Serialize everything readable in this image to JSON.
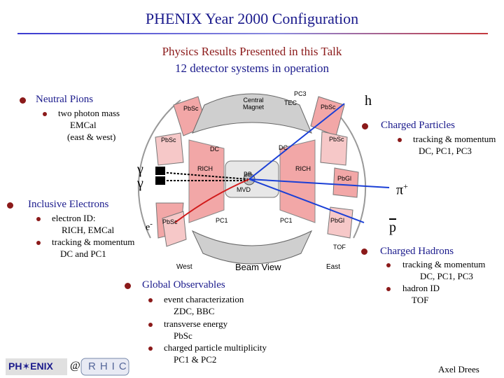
{
  "title": "PHENIX Year 2000 Configuration",
  "subtitle": "Physics Results Presented in this Talk",
  "subtitle2": "12  detector systems in operation",
  "neutral_pions": {
    "heading": "Neutral Pions",
    "line1": "two photon mass",
    "line2": "EMCal",
    "line3": "(east & west)"
  },
  "charged_particles": {
    "heading": "Charged Particles",
    "line1": "tracking & momentum",
    "line2": "DC, PC1, PC3"
  },
  "inclusive_electrons": {
    "heading": "Inclusive Electrons",
    "line1": "electron ID:",
    "line2": "RICH, EMCal",
    "line3": "tracking & momentum",
    "line4": "DC and PC1"
  },
  "charged_hadrons": {
    "heading": "Charged Hadrons",
    "line1": "tracking & momentum",
    "line2": "DC, PC1, PC3",
    "line3": "hadron ID",
    "line4": "TOF"
  },
  "global": {
    "heading": "Global Observables",
    "line1": "event characterization",
    "line2": "ZDC, BBC",
    "line3": "transverse energy",
    "line4": "PbSc",
    "line5": "charged particle multiplicity",
    "line6": "PC1 & PC2"
  },
  "symbols": {
    "h": "h",
    "gamma1": "γ",
    "gamma2": "γ",
    "pi_plus": "π+",
    "electron": "e-",
    "pbar": "p"
  },
  "detector_labels": {
    "central_magnet_1": "Central",
    "central_magnet_2": "Magnet",
    "pc3": "PC3",
    "tec": "TEC",
    "pbsc_top_left": "PbSc",
    "pbsc_top_right": "PbSc",
    "pbsc_left": "PbSc",
    "pbsc_right": "PbSc",
    "pbsc_bottom_left": "PbSc",
    "pbgl_right": "PbGl",
    "pbgl_bottom": "PbGl",
    "pbsc_west_upper": "PbSc",
    "dc_left": "DC",
    "dc_right": "DC",
    "rich_left": "RICH",
    "rich_right": "RICH",
    "bb": "BB",
    "mvd": "MVD",
    "pc1_left": "PC1",
    "pc1_right": "PC1",
    "tof": "TOF",
    "west": "West",
    "east": "East",
    "beam_view": "Beam View",
    "pc2_corner": "PC"
  },
  "footer": {
    "logo": "PH✶ENIX",
    "at": "@",
    "rhic": "RHIC",
    "author": "Axel Drees"
  },
  "colors": {
    "bullet": "#8b1a1a",
    "detector_fill": "#f2a7a7",
    "track_blue": "#1a3fd6",
    "track_red": "#d11a1a",
    "title_blue": "#1a1a8c",
    "subtitle_red": "#8b1a1a"
  }
}
